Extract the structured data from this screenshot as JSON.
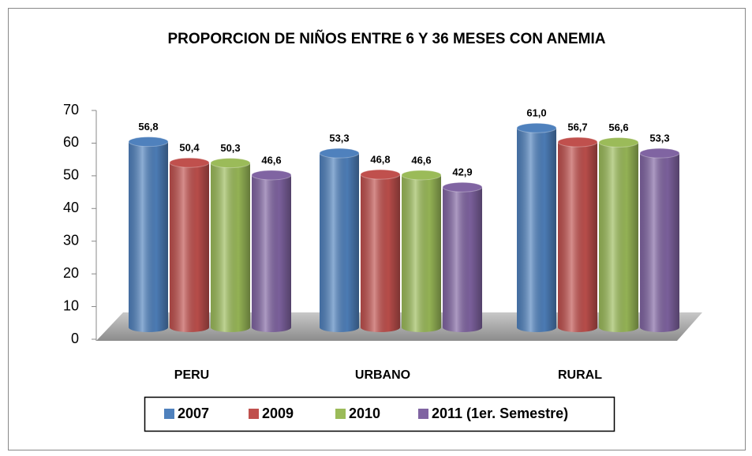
{
  "chart_data": {
    "type": "bar3d",
    "title": "PROPORCION DE  NIÑOS ENTRE 6 Y 36 MESES CON ANEMIA",
    "categories": [
      "PERU",
      "URBANO",
      "RURAL"
    ],
    "series": [
      {
        "name": "2007",
        "color": "#4f81bd",
        "values": [
          56.8,
          53.3,
          61.0
        ],
        "value_labels": [
          "56,8",
          "53,3",
          "61,0"
        ]
      },
      {
        "name": "2009",
        "color": "#c0504d",
        "values": [
          50.4,
          46.8,
          56.7
        ],
        "value_labels": [
          "50,4",
          "46,8",
          "56,7"
        ]
      },
      {
        "name": "2010",
        "color": "#9bbb59",
        "values": [
          50.3,
          46.6,
          56.6
        ],
        "value_labels": [
          "50,3",
          "46,6",
          "56,6"
        ]
      },
      {
        "name": "2011 (1er. Semestre)",
        "color": "#8064a2",
        "values": [
          46.6,
          42.9,
          53.3
        ],
        "value_labels": [
          "46,6",
          "42,9",
          "53,3"
        ]
      }
    ],
    "ylim": [
      0,
      70
    ],
    "yticks": [
      0,
      10,
      20,
      30,
      40,
      50,
      60,
      70
    ],
    "legend": "bottom"
  }
}
